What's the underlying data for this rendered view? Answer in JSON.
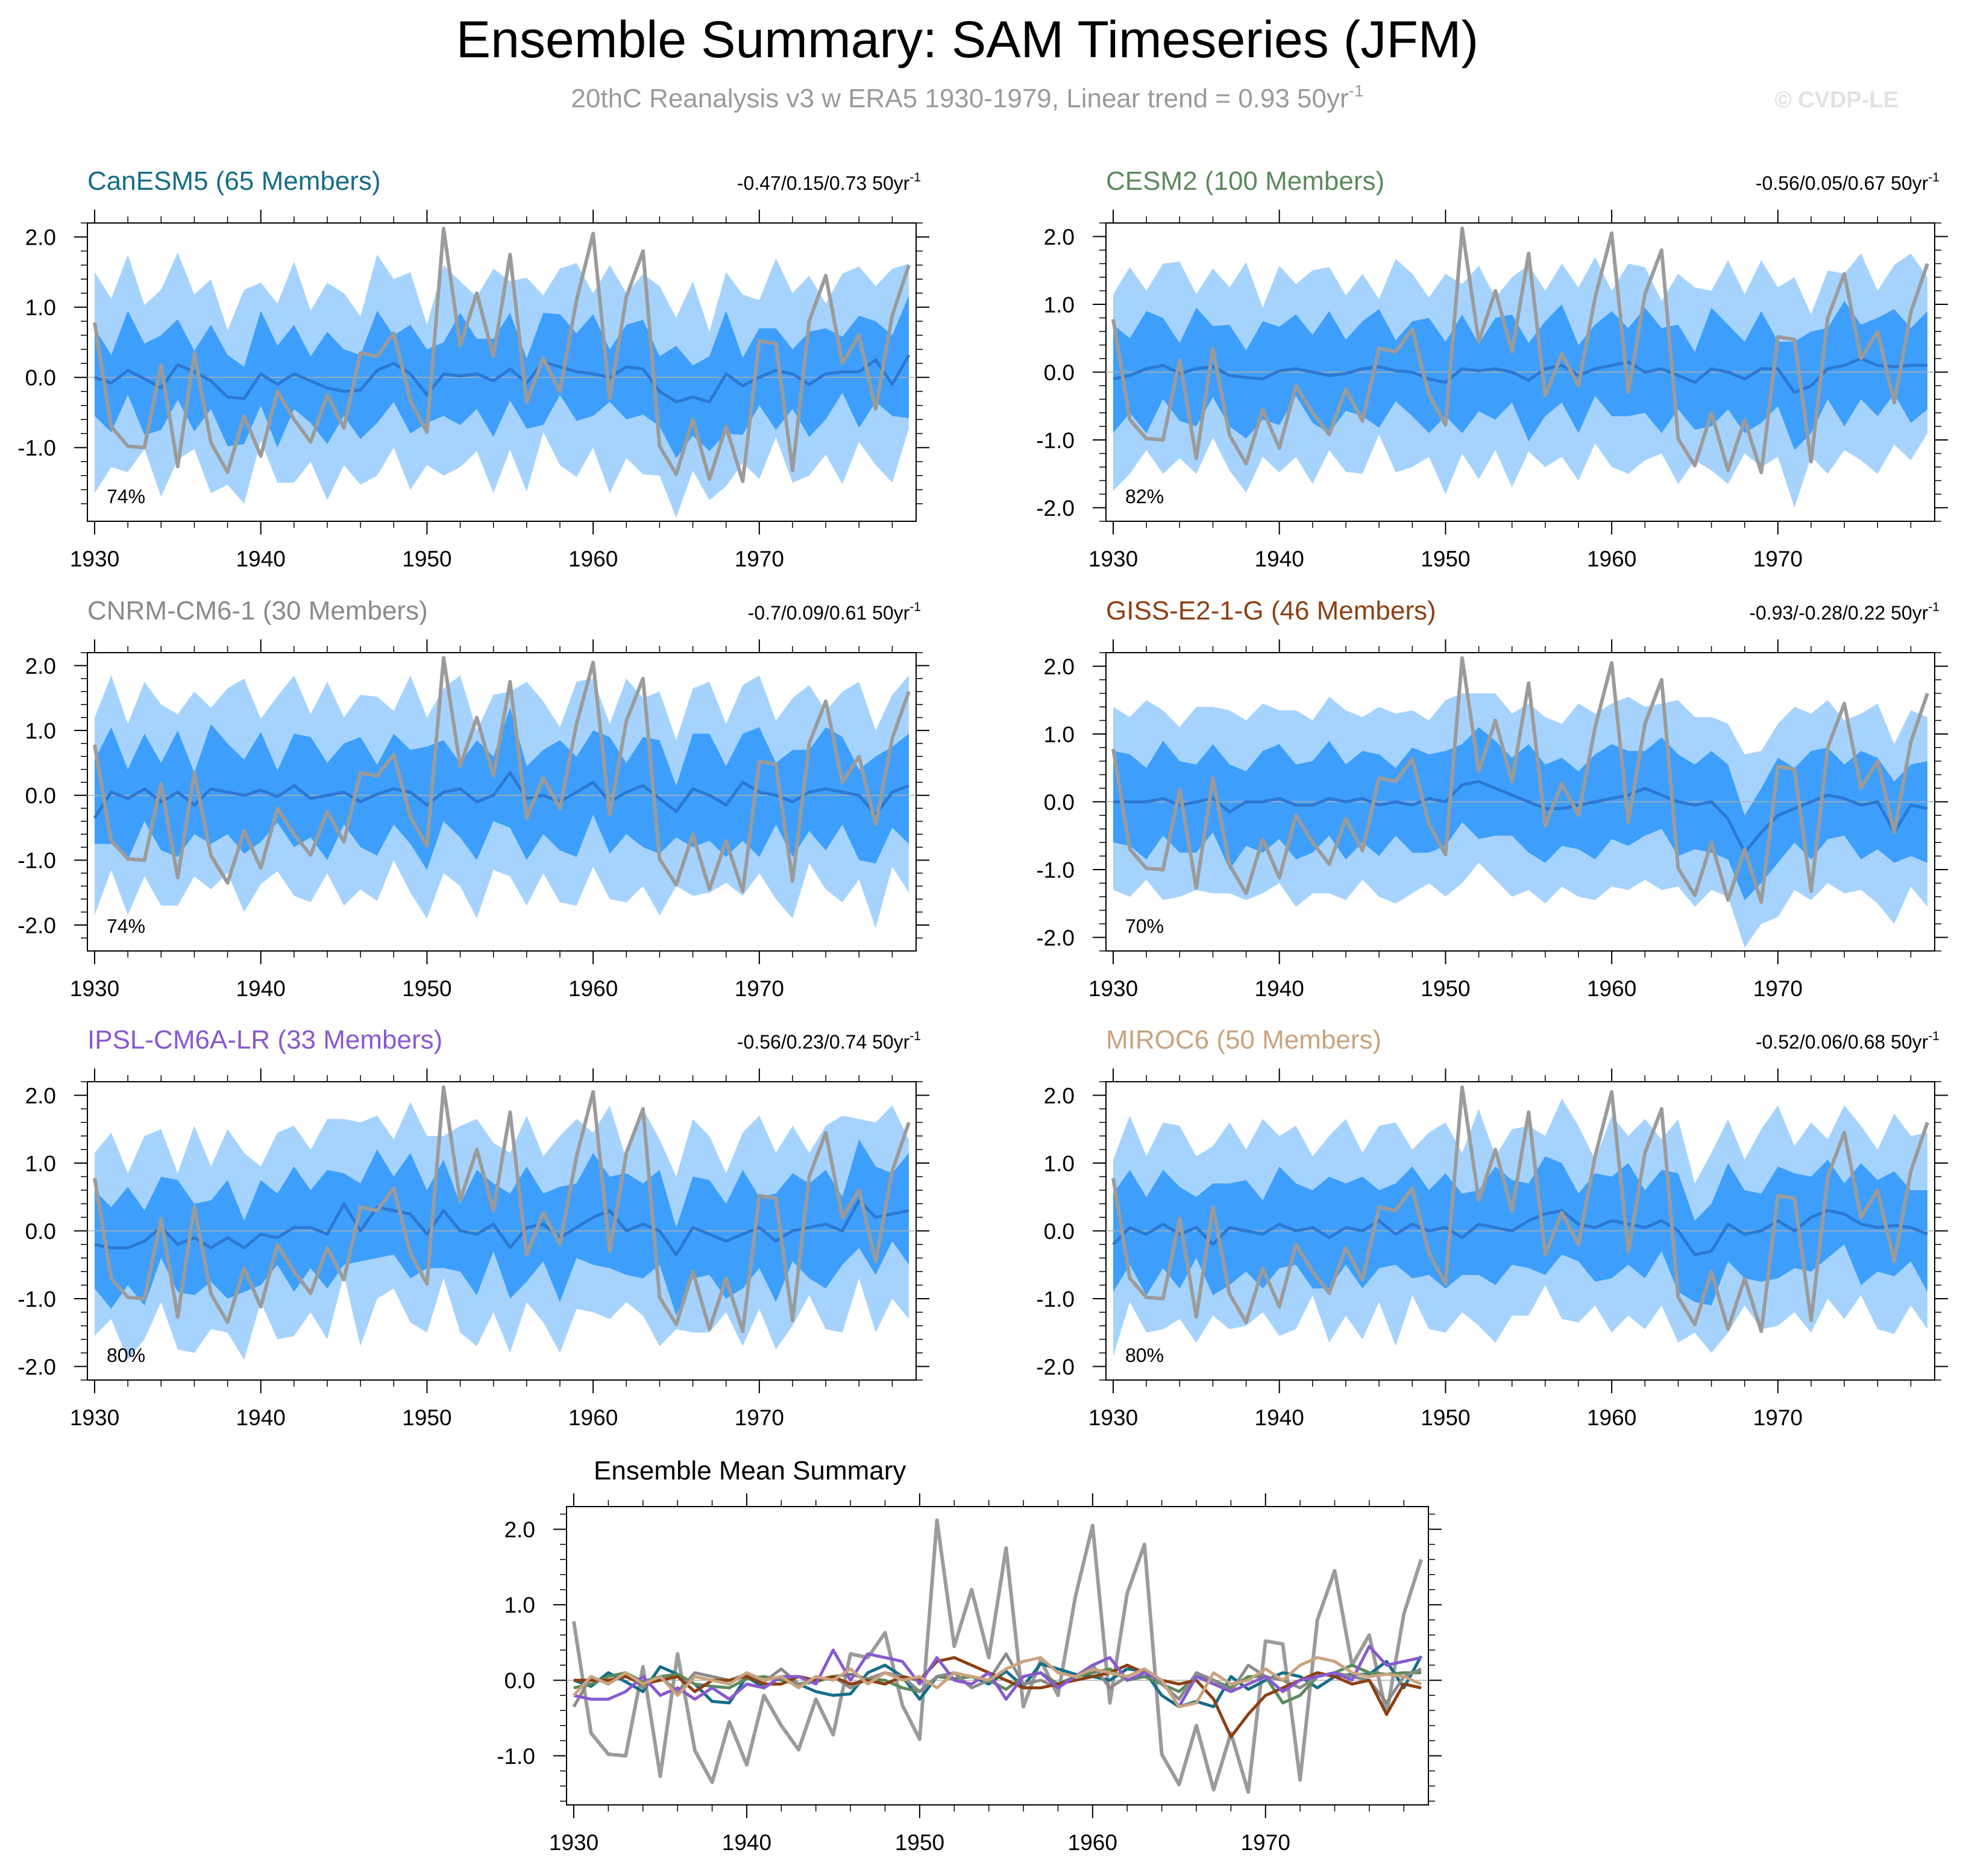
{
  "title": "Ensemble Summary: SAM Timeseries (JFM)",
  "subtitle": {
    "text": "20thC Reanalysis v3 w ERA5 1930-1979, Linear trend = 0.93 50yr",
    "superscript": "-1"
  },
  "watermark": "© CVDP-LE",
  "colors": {
    "outer_band": "#a6d3fd",
    "inner_band": "#3d9ffb",
    "ensemble_mean": "#2c78d2",
    "observations": "#9b9b9b",
    "zero_line": "#b0b0b0"
  },
  "chart_data": {
    "x_start": 1930,
    "x_end": 1979,
    "x_ticks": [
      1930,
      1940,
      1950,
      1960,
      1970
    ],
    "x_tick_labels": [
      "1930",
      "1940",
      "1950",
      "1960",
      "1970"
    ],
    "observations": [
      0.78,
      -0.7,
      -0.98,
      -1.0,
      0.18,
      -1.27,
      0.35,
      -0.93,
      -1.35,
      -0.55,
      -1.12,
      -0.2,
      -0.6,
      -0.92,
      -0.25,
      -0.72,
      0.35,
      0.3,
      0.63,
      -0.33,
      -0.78,
      2.12,
      0.45,
      1.2,
      0.3,
      1.75,
      -0.35,
      0.27,
      -0.2,
      1.1,
      2.05,
      -0.3,
      1.15,
      1.8,
      -0.98,
      -1.38,
      -0.6,
      -1.45,
      -0.7,
      -1.48,
      0.52,
      0.48,
      -1.32,
      0.8,
      1.45,
      0.2,
      0.6,
      -0.45,
      0.88,
      1.6
    ],
    "panels": [
      {
        "name": "CanESM5 (65 Members)",
        "color": "#156d89",
        "trend": "-0.47/0.15/0.73 50yr",
        "trend_sup": "-1",
        "pct": "74%",
        "y_ticks": [
          2.0,
          1.0,
          0.0,
          -1.0
        ],
        "y_tick_labels": [
          "2.0",
          "1.0",
          "0.0",
          "-1.0"
        ],
        "ylim": [
          -2.05,
          2.2
        ],
        "mean": [
          0.0,
          -0.08,
          0.1,
          -0.02,
          -0.15,
          0.18,
          0.08,
          -0.05,
          -0.28,
          -0.3,
          0.05,
          -0.1,
          0.05,
          -0.05,
          -0.15,
          -0.2,
          -0.18,
          0.1,
          0.2,
          0.05,
          -0.25,
          0.05,
          0.02,
          0.05,
          -0.05,
          0.12,
          -0.08,
          0.22,
          0.15,
          0.08,
          0.05,
          0.0,
          0.15,
          0.12,
          -0.2,
          -0.35,
          -0.28,
          -0.35,
          0.05,
          -0.12,
          0.0,
          0.1,
          0.05,
          -0.1,
          0.05,
          0.08,
          0.08,
          0.25,
          -0.1,
          0.32
        ],
        "spread": 0.6,
        "outer": 1.3,
        "noise_inner": [
          0.1,
          -0.2,
          0.25,
          -0.1,
          0.15,
          0.05,
          -0.3,
          0.2,
          0.0,
          -0.15,
          0.3,
          -0.05,
          0.1,
          -0.25,
          0.2,
          0.0,
          -0.1,
          0.25,
          -0.2,
          0.1,
          0.05,
          -0.15,
          0.3,
          -0.1,
          0.0,
          0.2,
          -0.25,
          0.1,
          0.15,
          -0.05,
          0.25,
          -0.2,
          0.0,
          0.1,
          -0.1,
          0.2,
          -0.15,
          0.05,
          0.3,
          -0.2,
          0.1,
          0.0,
          -0.25,
          0.15,
          0.05,
          -0.1,
          0.2,
          -0.05,
          0.1,
          0.25
        ],
        "noise_outer": [
          0.2,
          -0.1,
          0.35,
          -0.25,
          0.1,
          0.3,
          -0.2,
          0.15,
          -0.35,
          0.25,
          0.0,
          -0.15,
          0.3,
          -0.3,
          0.2,
          0.1,
          -0.25,
          0.35,
          -0.1,
          0.15,
          -0.3,
          0.25,
          0.05,
          -0.2,
          0.3,
          -0.05,
          0.2,
          -0.35,
          0.1,
          0.25,
          -0.15,
          0.3,
          -0.25,
          0.05,
          0.2,
          -0.1,
          0.35,
          -0.3,
          0.15,
          0.0,
          -0.2,
          0.3,
          -0.15,
          0.25,
          -0.3,
          0.1,
          0.2,
          -0.25,
          0.35,
          0.0
        ]
      },
      {
        "name": "CESM2 (100 Members)",
        "color": "#5a8a5c",
        "trend": "-0.56/0.05/0.67 50yr",
        "trend_sup": "-1",
        "pct": "82%",
        "y_ticks": [
          2.0,
          1.0,
          0.0,
          -1.0,
          -2.0
        ],
        "y_tick_labels": [
          "2.0",
          "1.0",
          "0.0",
          "-1.0",
          "-2.0"
        ],
        "ylim": [
          -2.2,
          2.2
        ],
        "mean": [
          -0.1,
          -0.05,
          0.05,
          0.1,
          -0.02,
          0.05,
          0.08,
          -0.05,
          -0.08,
          -0.1,
          0.02,
          0.05,
          0.0,
          -0.05,
          -0.02,
          0.05,
          0.08,
          0.02,
          0.0,
          -0.1,
          -0.15,
          0.05,
          0.02,
          0.05,
          0.0,
          -0.12,
          0.05,
          0.1,
          -0.05,
          0.05,
          0.1,
          0.15,
          0.0,
          0.05,
          -0.05,
          -0.15,
          0.05,
          0.0,
          -0.1,
          0.05,
          0.05,
          -0.3,
          -0.2,
          0.05,
          0.1,
          0.2,
          0.1,
          0.08,
          0.1,
          0.1
        ],
        "spread": 0.65,
        "outer": 1.35,
        "noise_inner": [
          0.15,
          -0.1,
          0.2,
          0.05,
          -0.2,
          0.25,
          -0.05,
          0.1,
          -0.25,
          0.2,
          0.0,
          0.15,
          -0.1,
          0.3,
          -0.15,
          0.05,
          0.2,
          -0.2,
          0.1,
          0.25,
          -0.05,
          0.15,
          -0.25,
          0.1,
          0.2,
          -0.1,
          0.05,
          0.25,
          -0.2,
          0.0,
          0.15,
          -0.15,
          0.3,
          -0.05,
          0.1,
          -0.2,
          0.25,
          0.05,
          -0.1,
          0.2,
          -0.25,
          0.1,
          0.15,
          -0.05,
          0.3,
          -0.15,
          0.05,
          0.2,
          -0.1,
          0.15
        ],
        "noise_outer": [
          -0.1,
          0.25,
          -0.2,
          0.15,
          0.3,
          -0.25,
          0.1,
          -0.05,
          0.35,
          -0.3,
          0.2,
          -0.1,
          0.15,
          0.25,
          -0.2,
          0.05,
          -0.35,
          0.3,
          0.1,
          -0.15,
          0.25,
          -0.1,
          0.2,
          -0.3,
          0.05,
          0.35,
          -0.2,
          0.15,
          -0.05,
          0.3,
          -0.25,
          0.1,
          0.2,
          -0.35,
          0.15,
          0.05,
          -0.2,
          0.3,
          -0.1,
          0.25,
          -0.15,
          0.35,
          -0.3,
          0.1,
          0.0,
          0.2,
          -0.25,
          0.15,
          0.3,
          -0.05
        ]
      },
      {
        "name": "CNRM-CM6-1 (30 Members)",
        "color": "#8a8a8a",
        "trend": "-0.7/0.09/0.61 50yr",
        "trend_sup": "-1",
        "pct": "74%",
        "y_ticks": [
          2.0,
          1.0,
          0.0,
          -1.0,
          -2.0
        ],
        "y_tick_labels": [
          "2.0",
          "1.0",
          "0.0",
          "-1.0",
          "-2.0"
        ],
        "ylim": [
          -2.4,
          2.2
        ],
        "mean": [
          -0.35,
          0.05,
          -0.05,
          0.1,
          -0.1,
          0.05,
          -0.15,
          0.1,
          0.05,
          0.0,
          0.08,
          -0.02,
          0.15,
          -0.05,
          0.0,
          0.05,
          -0.1,
          0.02,
          0.1,
          0.05,
          -0.15,
          0.05,
          0.1,
          -0.1,
          0.0,
          0.35,
          -0.05,
          0.0,
          -0.1,
          0.05,
          0.2,
          -0.1,
          0.05,
          0.15,
          -0.05,
          -0.25,
          0.1,
          0.0,
          -0.15,
          0.2,
          0.05,
          0.0,
          -0.1,
          0.05,
          0.1,
          0.05,
          0.0,
          -0.3,
          0.05,
          0.15
        ],
        "spread": 0.7,
        "outer": 1.45,
        "noise_inner": [
          0.2,
          0.3,
          -0.25,
          0.15,
          -0.1,
          0.25,
          -0.2,
          0.3,
          0.05,
          -0.15,
          0.2,
          -0.3,
          0.1,
          0.25,
          -0.2,
          0.05,
          0.3,
          -0.25,
          0.15,
          -0.05,
          0.2,
          0.1,
          -0.3,
          0.25,
          -0.1,
          0.3,
          -0.2,
          0.0,
          0.25,
          -0.15,
          0.1,
          0.3,
          -0.25,
          0.05,
          0.2,
          -0.3,
          0.15,
          0.25,
          -0.1,
          0.05,
          0.3,
          -0.2,
          0.1,
          -0.05,
          0.25,
          0.15,
          -0.3,
          0.2,
          0.0,
          0.1
        ],
        "noise_outer": [
          0.1,
          0.35,
          -0.3,
          0.2,
          0.05,
          -0.25,
          0.3,
          -0.2,
          0.15,
          0.35,
          -0.35,
          0.1,
          0.25,
          -0.15,
          0.3,
          -0.3,
          0.2,
          0.05,
          -0.25,
          0.35,
          -0.1,
          0.15,
          0.3,
          -0.35,
          0.1,
          -0.2,
          0.35,
          0.0,
          -0.3,
          0.25,
          0.15,
          -0.25,
          0.3,
          -0.1,
          0.2,
          -0.35,
          0.1,
          0.3,
          -0.2,
          0.05,
          0.35,
          -0.3,
          0.15,
          0.2,
          -0.25,
          0.1,
          0.3,
          -0.15,
          0.05,
          0.25
        ]
      },
      {
        "name": "GISS-E2-1-G (46 Members)",
        "color": "#8c4013",
        "trend": "-0.93/-0.28/0.22 50yr",
        "trend_sup": "-1",
        "pct": "70%",
        "y_ticks": [
          2.0,
          1.0,
          0.0,
          -1.0,
          -2.0
        ],
        "y_tick_labels": [
          "2.0",
          "1.0",
          "0.0",
          "-1.0",
          "-2.0"
        ],
        "ylim": [
          -2.2,
          2.2
        ],
        "mean": [
          0.0,
          0.0,
          0.0,
          0.05,
          -0.05,
          0.0,
          0.05,
          -0.15,
          0.0,
          0.0,
          0.05,
          -0.05,
          -0.05,
          0.05,
          0.0,
          0.05,
          -0.05,
          0.0,
          -0.05,
          0.05,
          0.0,
          0.25,
          0.3,
          0.2,
          0.1,
          0.0,
          -0.1,
          -0.1,
          -0.05,
          0.0,
          0.05,
          0.1,
          0.2,
          0.1,
          0.0,
          -0.05,
          0.0,
          -0.25,
          -0.75,
          -0.45,
          -0.2,
          -0.1,
          0.0,
          0.1,
          0.05,
          -0.05,
          0.0,
          -0.45,
          -0.05,
          -0.1
        ],
        "spread": 0.65,
        "outer": 1.3,
        "noise_inner": [
          0.1,
          0.05,
          -0.15,
          0.2,
          0.0,
          -0.1,
          0.15,
          0.05,
          -0.2,
          0.1,
          0.15,
          -0.05,
          0.0,
          0.2,
          -0.1,
          0.05,
          0.1,
          -0.15,
          0.2,
          0.0,
          0.1,
          -0.05,
          0.15,
          0.05,
          -0.1,
          0.2,
          0.0,
          0.1,
          -0.15,
          0.05,
          0.15,
          0.0,
          -0.1,
          0.2,
          0.05,
          -0.05,
          0.1,
          0.15,
          -0.1,
          0.0,
          0.2,
          -0.05,
          0.1,
          0.05,
          -0.15,
          0.15,
          0.0,
          0.1,
          -0.05,
          0.05
        ],
        "noise_outer": [
          0.1,
          -0.05,
          0.2,
          0.0,
          -0.15,
          0.1,
          0.05,
          0.2,
          -0.1,
          0.15,
          0.0,
          0.1,
          -0.05,
          0.2,
          0.05,
          -0.1,
          0.15,
          0.0,
          0.1,
          -0.15,
          0.2,
          0.05,
          0.0,
          0.1,
          -0.1,
          0.15,
          0.05,
          -0.05,
          0.2,
          0.0,
          0.1,
          0.15,
          -0.1,
          0.05,
          0.2,
          0.0,
          -0.05,
          0.1,
          0.15,
          -0.1,
          0.05,
          0.2,
          0.0,
          0.1,
          -0.15,
          0.05,
          0.15,
          0.0,
          0.1,
          0.05
        ]
      },
      {
        "name": "IPSL-CM6A-LR (33 Members)",
        "color": "#8859cf",
        "trend": "-0.56/0.23/0.74 50yr",
        "trend_sup": "-1",
        "pct": "80%",
        "y_ticks": [
          2.0,
          1.0,
          0.0,
          -1.0,
          -2.0
        ],
        "y_tick_labels": [
          "2.0",
          "1.0",
          "0.0",
          "-1.0",
          "-2.0"
        ],
        "ylim": [
          -2.2,
          2.2
        ],
        "mean": [
          -0.2,
          -0.25,
          -0.25,
          -0.15,
          0.05,
          -0.2,
          -0.1,
          -0.25,
          -0.1,
          -0.25,
          -0.05,
          -0.1,
          0.05,
          0.05,
          -0.05,
          0.4,
          0.0,
          0.35,
          0.3,
          0.25,
          -0.05,
          0.3,
          0.0,
          -0.05,
          0.1,
          -0.25,
          0.05,
          0.1,
          -0.1,
          0.05,
          0.2,
          0.3,
          0.0,
          0.1,
          0.0,
          -0.35,
          0.05,
          -0.05,
          -0.15,
          -0.05,
          0.05,
          -0.15,
          0.0,
          0.05,
          0.1,
          0.0,
          0.45,
          0.2,
          0.25,
          0.3
        ],
        "spread": 0.65,
        "outer": 1.35,
        "noise_inner": [
          0.15,
          -0.05,
          0.25,
          -0.2,
          0.1,
          0.3,
          -0.15,
          0.05,
          0.2,
          -0.25,
          0.15,
          0.0,
          0.25,
          -0.1,
          0.3,
          -0.2,
          0.05,
          0.2,
          -0.15,
          0.25,
          0.0,
          0.1,
          -0.25,
          0.3,
          -0.05,
          0.15,
          0.25,
          -0.2,
          0.1,
          0.0,
          0.3,
          -0.15,
          0.2,
          -0.05,
          0.25,
          -0.25,
          0.1,
          0.15,
          -0.1,
          0.3,
          -0.2,
          0.05,
          0.2,
          0.0,
          0.15,
          -0.15,
          0.25,
          0.1,
          -0.05,
          0.2
        ],
        "noise_outer": [
          0.0,
          0.35,
          -0.25,
          0.2,
          0.1,
          -0.3,
          0.3,
          -0.15,
          0.25,
          0.05,
          -0.35,
          0.2,
          0.15,
          -0.2,
          0.35,
          -0.1,
          0.25,
          0.0,
          -0.3,
          0.3,
          0.1,
          -0.25,
          0.2,
          0.35,
          -0.15,
          0.05,
          0.3,
          -0.35,
          0.15,
          0.25,
          -0.1,
          0.2,
          -0.3,
          0.35,
          0.0,
          -0.2,
          0.25,
          0.1,
          -0.35,
          0.15,
          0.3,
          -0.05,
          0.2,
          -0.25,
          0.1,
          0.35,
          -0.15,
          0.05,
          0.25,
          -0.3
        ]
      },
      {
        "name": "MIROC6 (50 Members)",
        "color": "#c9a37f",
        "trend": "-0.52/0.06/0.68 50yr",
        "trend_sup": "-1",
        "pct": "80%",
        "y_ticks": [
          2.0,
          1.0,
          0.0,
          -1.0,
          -2.0
        ],
        "y_tick_labels": [
          "2.0",
          "1.0",
          "0.0",
          "-1.0",
          "-2.0"
        ],
        "ylim": [
          -2.2,
          2.2
        ],
        "mean": [
          -0.2,
          0.05,
          -0.05,
          0.1,
          -0.05,
          0.05,
          -0.2,
          0.05,
          0.0,
          -0.05,
          0.1,
          0.0,
          0.05,
          -0.1,
          0.05,
          0.0,
          0.15,
          -0.05,
          0.1,
          0.0,
          0.05,
          -0.1,
          0.1,
          0.05,
          0.0,
          0.15,
          0.25,
          0.3,
          0.1,
          0.05,
          0.15,
          0.1,
          0.05,
          0.15,
          0.0,
          -0.35,
          -0.3,
          0.1,
          -0.05,
          0.0,
          0.15,
          0.0,
          0.2,
          0.3,
          0.25,
          0.1,
          0.05,
          0.08,
          0.05,
          -0.05
        ],
        "spread": 0.65,
        "outer": 1.35,
        "noise_inner": [
          0.1,
          0.2,
          -0.1,
          0.15,
          0.05,
          -0.2,
          0.25,
          0.0,
          0.1,
          -0.15,
          0.2,
          0.05,
          -0.1,
          0.25,
          0.0,
          0.15,
          -0.2,
          0.1,
          0.2,
          -0.05,
          0.15,
          0.0,
          -0.15,
          0.25,
          0.1,
          -0.1,
          0.2,
          0.05,
          -0.2,
          0.15,
          0.0,
          0.25,
          -0.1,
          0.1,
          0.2,
          -0.15,
          0.05,
          0.25,
          0.0,
          -0.1,
          0.15,
          0.2,
          -0.05,
          0.1,
          -0.2,
          0.25,
          0.05,
          0.15,
          -0.1,
          0.0
        ],
        "noise_outer": [
          -0.1,
          0.3,
          -0.2,
          0.15,
          0.25,
          -0.3,
          0.1,
          0.2,
          -0.15,
          0.35,
          -0.05,
          0.2,
          -0.3,
          0.15,
          0.25,
          -0.2,
          0.05,
          0.3,
          -0.25,
          0.1,
          0.2,
          -0.1,
          0.35,
          -0.3,
          0.15,
          0.05,
          -0.2,
          0.3,
          0.1,
          -0.35,
          0.2,
          -0.05,
          0.25,
          -0.15,
          0.3,
          -0.3,
          0.1,
          0.2,
          -0.25,
          0.15,
          0.35,
          -0.1,
          0.05,
          -0.3,
          0.25,
          0.1,
          -0.2,
          0.3,
          0.0,
          0.15
        ]
      }
    ],
    "summary": {
      "title": "Ensemble Mean Summary",
      "y_ticks": [
        2.0,
        1.0,
        0.0,
        -1.0
      ],
      "y_tick_labels": [
        "2.0",
        "1.0",
        "0.0",
        "-1.0"
      ],
      "ylim": [
        -1.65,
        2.3
      ]
    }
  }
}
